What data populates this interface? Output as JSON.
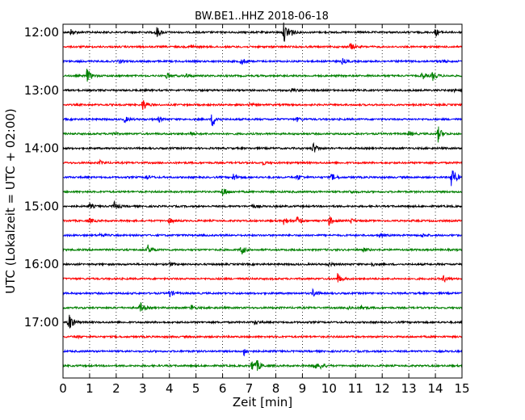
{
  "chart_data": {
    "type": "line",
    "title": "BW.BE1..HHZ 2018-06-18",
    "xlabel": "Zeit  [min]",
    "ylabel": "UTC (Lokalzeit = UTC + 02:00)",
    "xlim": [
      0,
      15
    ],
    "x_ticks": [
      "0",
      "1",
      "2",
      "3",
      "4",
      "5",
      "6",
      "7",
      "8",
      "9",
      "10",
      "11",
      "12",
      "13",
      "14",
      "15"
    ],
    "y_tick_labels": [
      "12:00",
      "13:00",
      "14:00",
      "15:00",
      "16:00",
      "17:00"
    ],
    "grid": "x-dotted",
    "trace_colors": [
      "#000000",
      "#ff0000",
      "#0000ff",
      "#008000"
    ],
    "traces": [
      {
        "start": "12:00",
        "events": [
          [
            0.3,
            0.5
          ],
          [
            3.5,
            1.0
          ],
          [
            8.3,
            1.6
          ],
          [
            8.5,
            0.8
          ],
          [
            14.0,
            0.6
          ]
        ]
      },
      {
        "start": "12:15",
        "events": [
          [
            4.8,
            0.3
          ],
          [
            10.8,
            0.6
          ]
        ]
      },
      {
        "start": "12:30",
        "events": [
          [
            2.1,
            0.3
          ],
          [
            6.7,
            0.6
          ],
          [
            10.5,
            0.4
          ],
          [
            14.2,
            0.3
          ]
        ]
      },
      {
        "start": "12:45",
        "events": [
          [
            0.9,
            1.1
          ],
          [
            3.9,
            0.5
          ],
          [
            4.6,
            0.4
          ],
          [
            13.5,
            0.6
          ],
          [
            13.9,
            0.7
          ]
        ]
      },
      {
        "start": "13:00",
        "events": [
          [
            8.6,
            0.3
          ],
          [
            14.6,
            0.3
          ]
        ]
      },
      {
        "start": "13:15",
        "events": [
          [
            3.0,
            1.0
          ],
          [
            7.0,
            0.3
          ]
        ]
      },
      {
        "start": "13:30",
        "events": [
          [
            2.3,
            0.5
          ],
          [
            3.6,
            0.4
          ],
          [
            5.6,
            1.3
          ],
          [
            8.8,
            0.3
          ]
        ]
      },
      {
        "start": "13:45",
        "events": [
          [
            1.8,
            0.3
          ],
          [
            4.8,
            0.3
          ],
          [
            13.0,
            0.4
          ],
          [
            14.1,
            1.2
          ]
        ]
      },
      {
        "start": "14:00",
        "events": [
          [
            9.4,
            0.9
          ]
        ]
      },
      {
        "start": "14:15",
        "events": [
          [
            1.4,
            0.3
          ],
          [
            7.5,
            0.3
          ]
        ]
      },
      {
        "start": "14:30",
        "events": [
          [
            3.1,
            0.5
          ],
          [
            6.4,
            0.6
          ],
          [
            8.8,
            0.5
          ],
          [
            10.1,
            0.6
          ],
          [
            14.6,
            2.0
          ]
        ]
      },
      {
        "start": "14:45",
        "events": [
          [
            6.0,
            0.8
          ],
          [
            10.8,
            0.3
          ]
        ]
      },
      {
        "start": "15:00",
        "events": [
          [
            1.0,
            0.4
          ],
          [
            1.9,
            0.8
          ],
          [
            7.1,
            0.3
          ]
        ]
      },
      {
        "start": "15:15",
        "events": [
          [
            1.0,
            0.4
          ],
          [
            4.0,
            0.4
          ],
          [
            8.3,
            0.7
          ],
          [
            8.8,
            0.7
          ],
          [
            10.0,
            0.8
          ],
          [
            10.8,
            0.4
          ]
        ]
      },
      {
        "start": "15:30",
        "events": [
          [
            1.4,
            0.3
          ],
          [
            11.9,
            0.3
          ],
          [
            13.5,
            0.3
          ]
        ]
      },
      {
        "start": "15:45",
        "events": [
          [
            3.2,
            0.8
          ],
          [
            6.7,
            0.8
          ],
          [
            11.3,
            0.3
          ]
        ]
      },
      {
        "start": "16:00",
        "events": [
          [
            4.0,
            0.3
          ],
          [
            10.0,
            0.3
          ],
          [
            11.6,
            0.3
          ]
        ]
      },
      {
        "start": "16:15",
        "events": [
          [
            10.3,
            1.0
          ],
          [
            14.3,
            0.6
          ]
        ]
      },
      {
        "start": "16:30",
        "events": [
          [
            4.0,
            0.6
          ],
          [
            9.4,
            0.7
          ]
        ]
      },
      {
        "start": "16:45",
        "events": [
          [
            2.9,
            0.9
          ],
          [
            4.8,
            0.5
          ],
          [
            10.7,
            0.3
          ],
          [
            11.2,
            0.4
          ]
        ]
      },
      {
        "start": "17:00",
        "events": [
          [
            0.2,
            1.8
          ],
          [
            7.2,
            0.3
          ]
        ]
      },
      {
        "start": "17:15",
        "events": [
          [
            0.5,
            0.2
          ]
        ]
      },
      {
        "start": "17:30",
        "events": [
          [
            6.8,
            0.7
          ]
        ]
      },
      {
        "start": "17:45",
        "events": [
          [
            7.1,
            1.0
          ],
          [
            7.3,
            0.7
          ],
          [
            9.4,
            0.8
          ],
          [
            9.7,
            0.5
          ]
        ]
      }
    ]
  }
}
